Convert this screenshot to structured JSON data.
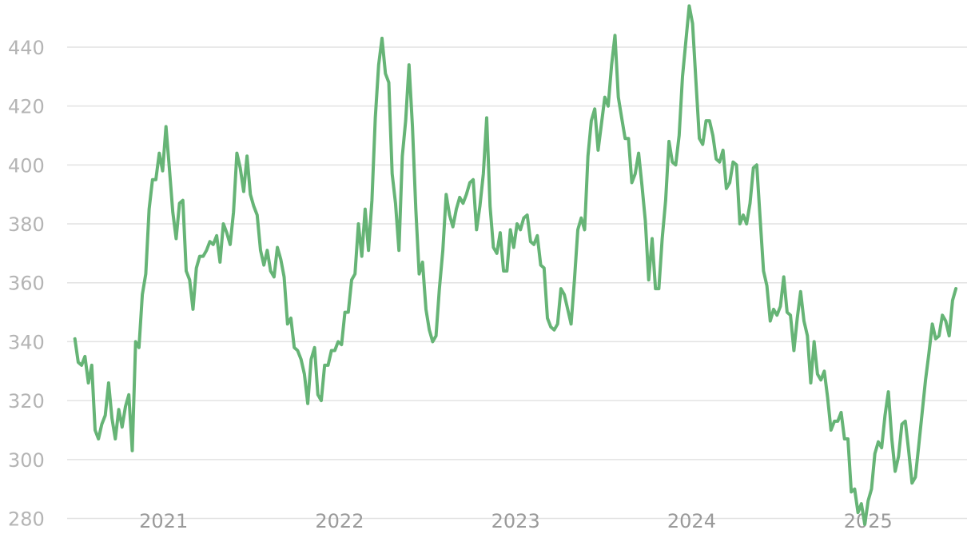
{
  "chart_data": {
    "type": "line",
    "title": "",
    "xlabel": "",
    "ylabel": "",
    "ylim": [
      272,
      456
    ],
    "xlim": [
      "2020-06-15",
      "2025-07-25"
    ],
    "grid": "horizontal",
    "y_ticks": [
      280,
      300,
      320,
      340,
      360,
      380,
      400,
      420,
      440
    ],
    "x_ticks": [
      {
        "date": "2021-01-01",
        "label": "2021"
      },
      {
        "date": "2022-01-01",
        "label": "2022"
      },
      {
        "date": "2023-01-01",
        "label": "2023"
      },
      {
        "date": "2024-01-01",
        "label": "2024"
      },
      {
        "date": "2025-01-01",
        "label": "2025"
      }
    ],
    "colors": {
      "series": "#66b476",
      "grid": "#e2e2e2",
      "tick_y": "#b4b4b4",
      "tick_x": "#9a9a9a"
    },
    "series": [
      {
        "name": "",
        "points": [
          [
            "2020-07-01",
            341
          ],
          [
            "2020-07-08",
            333
          ],
          [
            "2020-07-15",
            332
          ],
          [
            "2020-07-22",
            335
          ],
          [
            "2020-07-29",
            326
          ],
          [
            "2020-08-05",
            332
          ],
          [
            "2020-08-12",
            310
          ],
          [
            "2020-08-19",
            307
          ],
          [
            "2020-08-26",
            312
          ],
          [
            "2020-09-02",
            315
          ],
          [
            "2020-09-09",
            326
          ],
          [
            "2020-09-16",
            314
          ],
          [
            "2020-09-23",
            307
          ],
          [
            "2020-09-30",
            317
          ],
          [
            "2020-10-07",
            311
          ],
          [
            "2020-10-14",
            318
          ],
          [
            "2020-10-21",
            322
          ],
          [
            "2020-10-28",
            303
          ],
          [
            "2020-11-04",
            340
          ],
          [
            "2020-11-11",
            338
          ],
          [
            "2020-11-18",
            356
          ],
          [
            "2020-11-25",
            363
          ],
          [
            "2020-12-02",
            385
          ],
          [
            "2020-12-09",
            395
          ],
          [
            "2020-12-16",
            395
          ],
          [
            "2020-12-23",
            404
          ],
          [
            "2020-12-30",
            398
          ],
          [
            "2021-01-06",
            413
          ],
          [
            "2021-01-13",
            399
          ],
          [
            "2021-01-20",
            384
          ],
          [
            "2021-01-27",
            375
          ],
          [
            "2021-02-03",
            387
          ],
          [
            "2021-02-10",
            388
          ],
          [
            "2021-02-17",
            364
          ],
          [
            "2021-02-24",
            361
          ],
          [
            "2021-03-03",
            351
          ],
          [
            "2021-03-10",
            365
          ],
          [
            "2021-03-17",
            369
          ],
          [
            "2021-03-24",
            369
          ],
          [
            "2021-03-31",
            371
          ],
          [
            "2021-04-07",
            374
          ],
          [
            "2021-04-14",
            373
          ],
          [
            "2021-04-21",
            376
          ],
          [
            "2021-04-28",
            367
          ],
          [
            "2021-05-05",
            380
          ],
          [
            "2021-05-12",
            377
          ],
          [
            "2021-05-19",
            373
          ],
          [
            "2021-05-26",
            384
          ],
          [
            "2021-06-02",
            404
          ],
          [
            "2021-06-09",
            399
          ],
          [
            "2021-06-16",
            391
          ],
          [
            "2021-06-23",
            403
          ],
          [
            "2021-06-30",
            390
          ],
          [
            "2021-07-07",
            386
          ],
          [
            "2021-07-14",
            383
          ],
          [
            "2021-07-21",
            371
          ],
          [
            "2021-07-28",
            366
          ],
          [
            "2021-08-04",
            371
          ],
          [
            "2021-08-11",
            364
          ],
          [
            "2021-08-18",
            362
          ],
          [
            "2021-08-25",
            372
          ],
          [
            "2021-09-01",
            368
          ],
          [
            "2021-09-08",
            362
          ],
          [
            "2021-09-15",
            346
          ],
          [
            "2021-09-22",
            348
          ],
          [
            "2021-09-29",
            338
          ],
          [
            "2021-10-06",
            337
          ],
          [
            "2021-10-13",
            334
          ],
          [
            "2021-10-20",
            329
          ],
          [
            "2021-10-27",
            319
          ],
          [
            "2021-11-03",
            334
          ],
          [
            "2021-11-10",
            338
          ],
          [
            "2021-11-17",
            322
          ],
          [
            "2021-11-24",
            320
          ],
          [
            "2021-12-01",
            332
          ],
          [
            "2021-12-08",
            332
          ],
          [
            "2021-12-15",
            337
          ],
          [
            "2021-12-22",
            337
          ],
          [
            "2021-12-29",
            340
          ],
          [
            "2022-01-05",
            339
          ],
          [
            "2022-01-12",
            350
          ],
          [
            "2022-01-19",
            350
          ],
          [
            "2022-01-26",
            361
          ],
          [
            "2022-02-02",
            363
          ],
          [
            "2022-02-09",
            380
          ],
          [
            "2022-02-16",
            369
          ],
          [
            "2022-02-23",
            385
          ],
          [
            "2022-03-02",
            371
          ],
          [
            "2022-03-09",
            388
          ],
          [
            "2022-03-16",
            416
          ],
          [
            "2022-03-23",
            434
          ],
          [
            "2022-03-30",
            443
          ],
          [
            "2022-04-06",
            431
          ],
          [
            "2022-04-13",
            428
          ],
          [
            "2022-04-20",
            397
          ],
          [
            "2022-04-27",
            387
          ],
          [
            "2022-05-04",
            371
          ],
          [
            "2022-05-11",
            403
          ],
          [
            "2022-05-18",
            415
          ],
          [
            "2022-05-25",
            434
          ],
          [
            "2022-06-01",
            413
          ],
          [
            "2022-06-08",
            385
          ],
          [
            "2022-06-15",
            363
          ],
          [
            "2022-06-22",
            367
          ],
          [
            "2022-06-29",
            351
          ],
          [
            "2022-07-06",
            344
          ],
          [
            "2022-07-13",
            340
          ],
          [
            "2022-07-20",
            342
          ],
          [
            "2022-07-27",
            358
          ],
          [
            "2022-08-03",
            371
          ],
          [
            "2022-08-10",
            390
          ],
          [
            "2022-08-17",
            383
          ],
          [
            "2022-08-24",
            379
          ],
          [
            "2022-08-31",
            385
          ],
          [
            "2022-09-07",
            389
          ],
          [
            "2022-09-14",
            387
          ],
          [
            "2022-09-21",
            390
          ],
          [
            "2022-09-28",
            394
          ],
          [
            "2022-10-05",
            395
          ],
          [
            "2022-10-12",
            378
          ],
          [
            "2022-10-19",
            386
          ],
          [
            "2022-10-26",
            397
          ],
          [
            "2022-11-02",
            416
          ],
          [
            "2022-11-09",
            386
          ],
          [
            "2022-11-16",
            372
          ],
          [
            "2022-11-23",
            370
          ],
          [
            "2022-11-30",
            377
          ],
          [
            "2022-12-07",
            364
          ],
          [
            "2022-12-14",
            364
          ],
          [
            "2022-12-21",
            378
          ],
          [
            "2022-12-28",
            372
          ],
          [
            "2023-01-04",
            380
          ],
          [
            "2023-01-11",
            378
          ],
          [
            "2023-01-18",
            382
          ],
          [
            "2023-01-25",
            383
          ],
          [
            "2023-02-01",
            374
          ],
          [
            "2023-02-08",
            373
          ],
          [
            "2023-02-15",
            376
          ],
          [
            "2023-02-22",
            366
          ],
          [
            "2023-03-01",
            365
          ],
          [
            "2023-03-08",
            348
          ],
          [
            "2023-03-15",
            345
          ],
          [
            "2023-03-22",
            344
          ],
          [
            "2023-03-29",
            346
          ],
          [
            "2023-04-05",
            358
          ],
          [
            "2023-04-12",
            356
          ],
          [
            "2023-04-19",
            351
          ],
          [
            "2023-04-26",
            346
          ],
          [
            "2023-05-03",
            361
          ],
          [
            "2023-05-10",
            378
          ],
          [
            "2023-05-17",
            382
          ],
          [
            "2023-05-24",
            378
          ],
          [
            "2023-05-31",
            403
          ],
          [
            "2023-06-07",
            415
          ],
          [
            "2023-06-14",
            419
          ],
          [
            "2023-06-21",
            405
          ],
          [
            "2023-06-28",
            414
          ],
          [
            "2023-07-05",
            423
          ],
          [
            "2023-07-12",
            420
          ],
          [
            "2023-07-19",
            434
          ],
          [
            "2023-07-26",
            444
          ],
          [
            "2023-08-02",
            423
          ],
          [
            "2023-08-09",
            416
          ],
          [
            "2023-08-16",
            409
          ],
          [
            "2023-08-23",
            409
          ],
          [
            "2023-08-30",
            394
          ],
          [
            "2023-09-06",
            397
          ],
          [
            "2023-09-13",
            404
          ],
          [
            "2023-09-20",
            393
          ],
          [
            "2023-09-27",
            381
          ],
          [
            "2023-10-04",
            361
          ],
          [
            "2023-10-11",
            375
          ],
          [
            "2023-10-18",
            358
          ],
          [
            "2023-10-25",
            358
          ],
          [
            "2023-11-01",
            375
          ],
          [
            "2023-11-08",
            388
          ],
          [
            "2023-11-15",
            408
          ],
          [
            "2023-11-22",
            401
          ],
          [
            "2023-11-29",
            400
          ],
          [
            "2023-12-06",
            410
          ],
          [
            "2023-12-13",
            430
          ],
          [
            "2023-12-20",
            442
          ],
          [
            "2023-12-27",
            454
          ],
          [
            "2024-01-03",
            448
          ],
          [
            "2024-01-10",
            428
          ],
          [
            "2024-01-17",
            409
          ],
          [
            "2024-01-24",
            407
          ],
          [
            "2024-01-31",
            415
          ],
          [
            "2024-02-07",
            415
          ],
          [
            "2024-02-14",
            410
          ],
          [
            "2024-02-21",
            402
          ],
          [
            "2024-02-28",
            401
          ],
          [
            "2024-03-06",
            405
          ],
          [
            "2024-03-13",
            392
          ],
          [
            "2024-03-20",
            394
          ],
          [
            "2024-03-27",
            401
          ],
          [
            "2024-04-03",
            400
          ],
          [
            "2024-04-10",
            380
          ],
          [
            "2024-04-17",
            383
          ],
          [
            "2024-04-24",
            380
          ],
          [
            "2024-05-01",
            387
          ],
          [
            "2024-05-08",
            399
          ],
          [
            "2024-05-15",
            400
          ],
          [
            "2024-05-22",
            382
          ],
          [
            "2024-05-29",
            364
          ],
          [
            "2024-06-05",
            359
          ],
          [
            "2024-06-12",
            347
          ],
          [
            "2024-06-19",
            351
          ],
          [
            "2024-06-26",
            349
          ],
          [
            "2024-07-03",
            352
          ],
          [
            "2024-07-10",
            362
          ],
          [
            "2024-07-17",
            350
          ],
          [
            "2024-07-24",
            349
          ],
          [
            "2024-07-31",
            337
          ],
          [
            "2024-08-07",
            348
          ],
          [
            "2024-08-14",
            357
          ],
          [
            "2024-08-21",
            347
          ],
          [
            "2024-08-28",
            342
          ],
          [
            "2024-09-04",
            326
          ],
          [
            "2024-09-11",
            340
          ],
          [
            "2024-09-18",
            329
          ],
          [
            "2024-09-25",
            327
          ],
          [
            "2024-10-02",
            330
          ],
          [
            "2024-10-09",
            321
          ],
          [
            "2024-10-16",
            310
          ],
          [
            "2024-10-23",
            313
          ],
          [
            "2024-10-30",
            313
          ],
          [
            "2024-11-06",
            316
          ],
          [
            "2024-11-13",
            307
          ],
          [
            "2024-11-20",
            307
          ],
          [
            "2024-11-27",
            289
          ],
          [
            "2024-12-04",
            290
          ],
          [
            "2024-12-11",
            282
          ],
          [
            "2024-12-18",
            285
          ],
          [
            "2024-12-25",
            278
          ],
          [
            "2025-01-01",
            286
          ],
          [
            "2025-01-08",
            290
          ],
          [
            "2025-01-15",
            302
          ],
          [
            "2025-01-22",
            306
          ],
          [
            "2025-01-29",
            304
          ],
          [
            "2025-02-05",
            315
          ],
          [
            "2025-02-12",
            323
          ],
          [
            "2025-02-19",
            307
          ],
          [
            "2025-02-26",
            296
          ],
          [
            "2025-03-05",
            301
          ],
          [
            "2025-03-12",
            312
          ],
          [
            "2025-03-19",
            313
          ],
          [
            "2025-03-26",
            303
          ],
          [
            "2025-04-02",
            292
          ],
          [
            "2025-04-09",
            294
          ],
          [
            "2025-04-16",
            305
          ],
          [
            "2025-04-23",
            316
          ],
          [
            "2025-04-30",
            327
          ],
          [
            "2025-05-07",
            336
          ],
          [
            "2025-05-14",
            346
          ],
          [
            "2025-05-21",
            341
          ],
          [
            "2025-05-28",
            342
          ],
          [
            "2025-06-04",
            349
          ],
          [
            "2025-06-11",
            347
          ],
          [
            "2025-06-18",
            342
          ],
          [
            "2025-06-25",
            354
          ],
          [
            "2025-07-02",
            358
          ]
        ]
      }
    ]
  }
}
